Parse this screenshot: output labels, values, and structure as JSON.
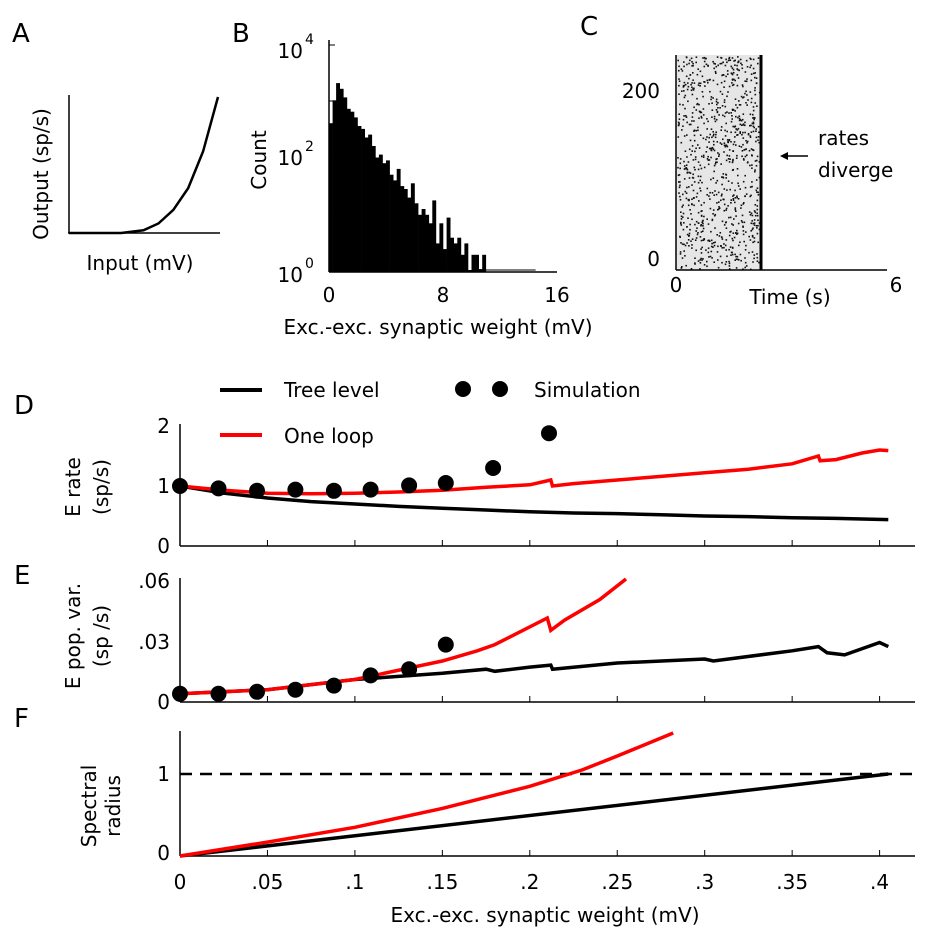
{
  "panel_letters": {
    "a": "A",
    "b": "B",
    "c": "C",
    "d": "D",
    "e": "E",
    "f": "F"
  },
  "colors": {
    "tree": "#000000",
    "loop": "#ff0000",
    "sim": "#000000",
    "bars": "#000000"
  },
  "chart_data": [
    {
      "id": "A",
      "type": "line",
      "xlabel": "Input (mV)",
      "ylabel": "Output (sp/s)",
      "note": "transfer function (threshold power law), axes without ticks",
      "x": [
        0,
        0.35,
        0.5,
        0.6,
        0.7,
        0.8,
        0.9,
        1.0
      ],
      "y": [
        0,
        0,
        0.02,
        0.07,
        0.17,
        0.33,
        0.6,
        1.0
      ]
    },
    {
      "id": "B",
      "type": "bar",
      "xlabel": "Exc.-exc. synaptic weight (mV)",
      "ylabel": "Count",
      "xticks": [
        "0",
        "8",
        "16"
      ],
      "yticks": [
        {
          "base": "10",
          "exp": "0"
        },
        {
          "base": "10",
          "exp": "2"
        },
        {
          "base": "10",
          "exp": "4"
        }
      ],
      "xlim": [
        0,
        16
      ],
      "ylim_log10": [
        0,
        4
      ],
      "yscale": "log",
      "bin_width": 0.25,
      "log10_counts": [
        2.6,
        3.0,
        3.3,
        3.2,
        3.05,
        2.85,
        2.8,
        2.7,
        2.55,
        2.5,
        2.35,
        2.4,
        2.2,
        2.0,
        2.05,
        1.9,
        1.95,
        1.7,
        1.6,
        1.8,
        1.5,
        1.45,
        1.3,
        1.55,
        1.2,
        1.0,
        1.1,
        1.0,
        0.85,
        1.25,
        0.5,
        0.85,
        0.4,
        0.95,
        0.6,
        0.5,
        0.6,
        0.3,
        0.5,
        0.0,
        0.3,
        0.3,
        0.05,
        0.3
      ],
      "tail_x_end": 14.5
    },
    {
      "id": "C",
      "type": "raster",
      "xlabel": "Time (s)",
      "xticks": [
        "0",
        "6"
      ],
      "yticks": [
        "0",
        "200"
      ],
      "xlim": [
        0,
        6
      ],
      "ylim": [
        0,
        250
      ],
      "diverge_time_s": 2.0,
      "annotation": [
        "rates",
        "diverge"
      ]
    },
    {
      "id": "D",
      "type": "line",
      "ylabel_lines": [
        "E rate",
        "(sp/s)"
      ],
      "yticks": [
        "0",
        "1",
        "2"
      ],
      "ylim": [
        0,
        2
      ],
      "xlim": [
        0,
        0.42
      ],
      "legend": {
        "tree": "Tree level",
        "loop": "One loop",
        "sim": "Simulation"
      },
      "series": [
        {
          "name": "Tree level",
          "x": [
            0,
            0.025,
            0.05,
            0.075,
            0.1,
            0.125,
            0.15,
            0.175,
            0.2,
            0.225,
            0.25,
            0.275,
            0.3,
            0.325,
            0.35,
            0.375,
            0.405
          ],
          "y": [
            1.0,
            0.88,
            0.8,
            0.74,
            0.7,
            0.66,
            0.63,
            0.6,
            0.57,
            0.55,
            0.54,
            0.52,
            0.5,
            0.49,
            0.47,
            0.46,
            0.44
          ]
        },
        {
          "name": "One loop",
          "x": [
            0,
            0.025,
            0.05,
            0.075,
            0.1,
            0.125,
            0.15,
            0.175,
            0.2,
            0.212,
            0.213,
            0.225,
            0.25,
            0.275,
            0.3,
            0.325,
            0.35,
            0.365,
            0.366,
            0.375,
            0.39,
            0.4,
            0.405
          ],
          "y": [
            1.0,
            0.93,
            0.88,
            0.87,
            0.88,
            0.9,
            0.93,
            0.98,
            1.02,
            1.1,
            1.0,
            1.04,
            1.1,
            1.16,
            1.22,
            1.28,
            1.37,
            1.5,
            1.42,
            1.44,
            1.55,
            1.6,
            1.59
          ]
        }
      ],
      "simulation": {
        "x": [
          0,
          0.022,
          0.044,
          0.066,
          0.088,
          0.109,
          0.131,
          0.152,
          0.179,
          0.211
        ],
        "y": [
          1.0,
          0.96,
          0.92,
          0.94,
          0.92,
          0.94,
          1.01,
          1.05,
          1.3,
          1.88
        ]
      }
    },
    {
      "id": "E",
      "type": "line",
      "ylabel_lines": [
        "E pop. var.",
        "(sp /s)"
      ],
      "yticks": [
        "0",
        ".03",
        ".06"
      ],
      "ylim": [
        0,
        0.06
      ],
      "xlim": [
        0,
        0.42
      ],
      "series": [
        {
          "name": "Tree level",
          "x": [
            0,
            0.05,
            0.1,
            0.15,
            0.175,
            0.18,
            0.2,
            0.212,
            0.213,
            0.25,
            0.3,
            0.305,
            0.35,
            0.365,
            0.37,
            0.38,
            0.4,
            0.405
          ],
          "y": [
            0.004,
            0.006,
            0.011,
            0.014,
            0.016,
            0.015,
            0.017,
            0.018,
            0.016,
            0.019,
            0.021,
            0.02,
            0.025,
            0.027,
            0.024,
            0.023,
            0.029,
            0.027
          ]
        },
        {
          "name": "One loop",
          "x": [
            0,
            0.05,
            0.1,
            0.15,
            0.17,
            0.18,
            0.21,
            0.212,
            0.22,
            0.24,
            0.255
          ],
          "y": [
            0.004,
            0.006,
            0.011,
            0.02,
            0.025,
            0.028,
            0.041,
            0.035,
            0.04,
            0.05,
            0.06
          ]
        }
      ],
      "simulation": {
        "x": [
          0,
          0.022,
          0.044,
          0.066,
          0.088,
          0.109,
          0.131,
          0.152
        ],
        "y": [
          0.004,
          0.004,
          0.005,
          0.006,
          0.008,
          0.013,
          0.016,
          0.028
        ]
      }
    },
    {
      "id": "F",
      "type": "line",
      "ylabel_lines": [
        "Spectral",
        "radius"
      ],
      "yticks": [
        "0",
        "1"
      ],
      "ylim": [
        0,
        1.5
      ],
      "xlim": [
        0,
        0.42
      ],
      "xticks": [
        "0",
        ".05",
        ".1",
        ".15",
        ".2",
        ".25",
        ".3",
        ".35",
        ".4"
      ],
      "xlabel": "Exc.-exc. synaptic weight (mV)",
      "reference_line": 1.0,
      "series": [
        {
          "name": "Tree level",
          "x": [
            0,
            0.405
          ],
          "y": [
            0,
            1.0
          ]
        },
        {
          "name": "One loop",
          "x": [
            0,
            0.05,
            0.1,
            0.15,
            0.2,
            0.23,
            0.25,
            0.282
          ],
          "y": [
            0,
            0.17,
            0.35,
            0.58,
            0.85,
            1.05,
            1.22,
            1.5
          ]
        }
      ]
    }
  ]
}
